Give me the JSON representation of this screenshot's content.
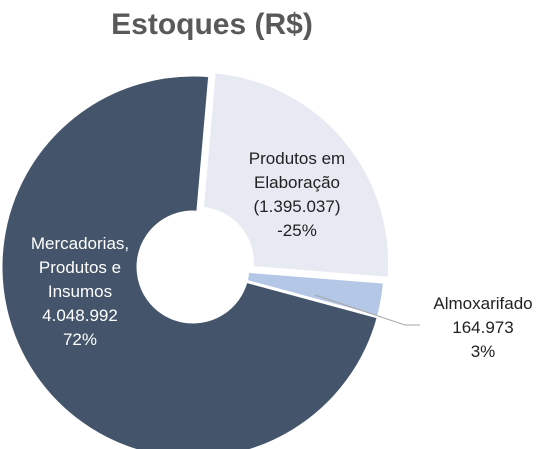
{
  "chart_data": {
    "type": "donut",
    "title": "Estoques (R$)",
    "categories": [
      "Produtos em\nElaboração",
      "Almoxarifado",
      "Mercadorias,\nProdutos e\nInsumos"
    ],
    "values": [
      -1395037,
      164973,
      4048992
    ],
    "value_labels": [
      "(1.395.037)",
      "164.973",
      "4.048.992"
    ],
    "percent_labels": [
      "-25%",
      "3%",
      "72%"
    ],
    "colors": [
      "#e7e9f3",
      "#b4c7e7",
      "#44546a"
    ]
  }
}
